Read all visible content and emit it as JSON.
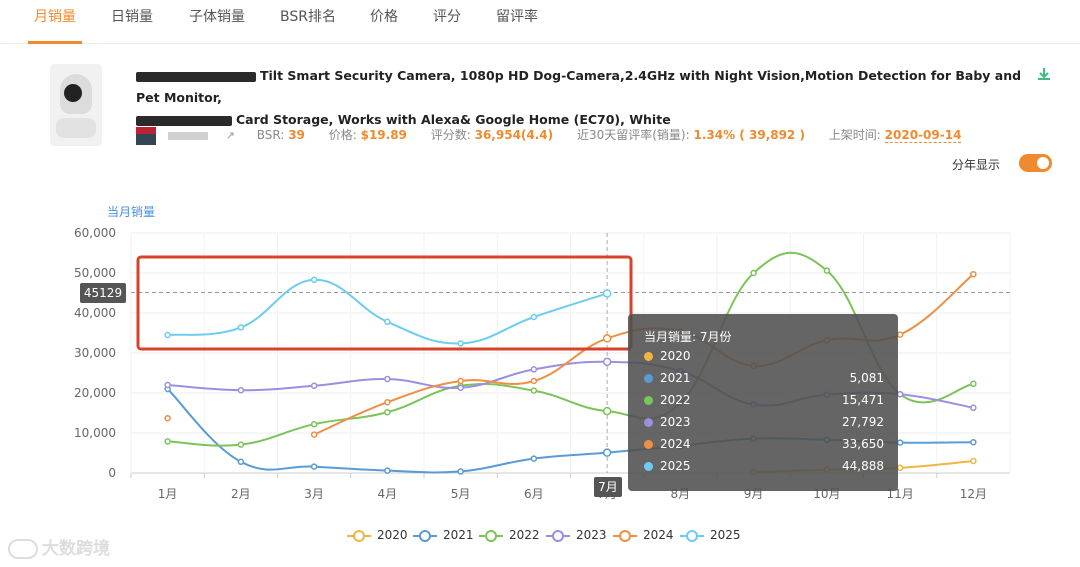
{
  "tabs": [
    "月销量",
    "日销量",
    "子体销量",
    "BSR排名",
    "价格",
    "评分",
    "留评率"
  ],
  "active_tab": 0,
  "product": {
    "title_line1": "Tilt Smart Security Camera, 1080p HD Dog-Camera,2.4GHz with Night Vision,Motion Detection for Baby and Pet Monitor,",
    "title_line2": "Card Storage, Works with Alexa& Google Home (EC70), White",
    "bsr_label": "BSR:",
    "bsr_value": "39",
    "price_label": "价格:",
    "price_value": "$19.89",
    "rating_label": "评分数:",
    "rating_value": "36,954(4.4)",
    "review_rate_label": "近30天留评率(销量):",
    "review_rate_value": "1.34% ( 39,892 )",
    "listed_label": "上架时间:",
    "listed_value": "2020-09-14"
  },
  "toggle": {
    "label": "分年显示",
    "on": true
  },
  "watermark": "大数跨境",
  "colors": {
    "accent": "#f08a2e",
    "highlight_box": "#d9412b"
  },
  "chart_data": {
    "type": "line",
    "ylabel": "当月销量",
    "ylim": [
      0,
      60000
    ],
    "yticks": [
      "0",
      "10,000",
      "20,000",
      "30,000",
      "40,000",
      "50,000",
      "60,000"
    ],
    "categories": [
      "1月",
      "2月",
      "3月",
      "4月",
      "5月",
      "6月",
      "7月",
      "8月",
      "9月",
      "10月",
      "11月",
      "12月"
    ],
    "legend_position": "bottom",
    "series": [
      {
        "name": "2020",
        "color": "#f0b544",
        "values": [
          null,
          null,
          null,
          null,
          null,
          null,
          null,
          null,
          200,
          800,
          1300,
          3000
        ]
      },
      {
        "name": "2021",
        "color": "#5b9bd5",
        "values": [
          21000,
          2800,
          1600,
          600,
          400,
          3600,
          5081,
          6800,
          8600,
          8300,
          7600,
          7700
        ]
      },
      {
        "name": "2022",
        "color": "#7cc359",
        "values": [
          7900,
          7100,
          12200,
          15200,
          21800,
          20600,
          15471,
          17500,
          50000,
          50600,
          19700,
          22300
        ]
      },
      {
        "name": "2023",
        "color": "#9b8fe0",
        "values": [
          22000,
          20700,
          21800,
          23500,
          21300,
          25900,
          27792,
          25500,
          17100,
          19600,
          19700,
          16300
        ]
      },
      {
        "name": "2024",
        "color": "#ef8f44",
        "values": [
          13700,
          null,
          9600,
          17700,
          23000,
          23000,
          33650,
          35500,
          26800,
          33200,
          34600,
          49700
        ]
      },
      {
        "name": "2025",
        "color": "#6ccdf0",
        "values": [
          34500,
          36400,
          48300,
          37800,
          32400,
          39000,
          44888,
          null,
          null,
          null,
          null,
          null
        ]
      }
    ],
    "hover": {
      "x_label": "7月",
      "y_label": "45129",
      "tooltip_title": "当月销量: 7月份",
      "rows": [
        {
          "name": "2020",
          "value": ""
        },
        {
          "name": "2021",
          "value": "5,081"
        },
        {
          "name": "2022",
          "value": "15,471"
        },
        {
          "name": "2023",
          "value": "27,792"
        },
        {
          "name": "2024",
          "value": "33,650"
        },
        {
          "name": "2025",
          "value": "44,888"
        }
      ]
    }
  }
}
